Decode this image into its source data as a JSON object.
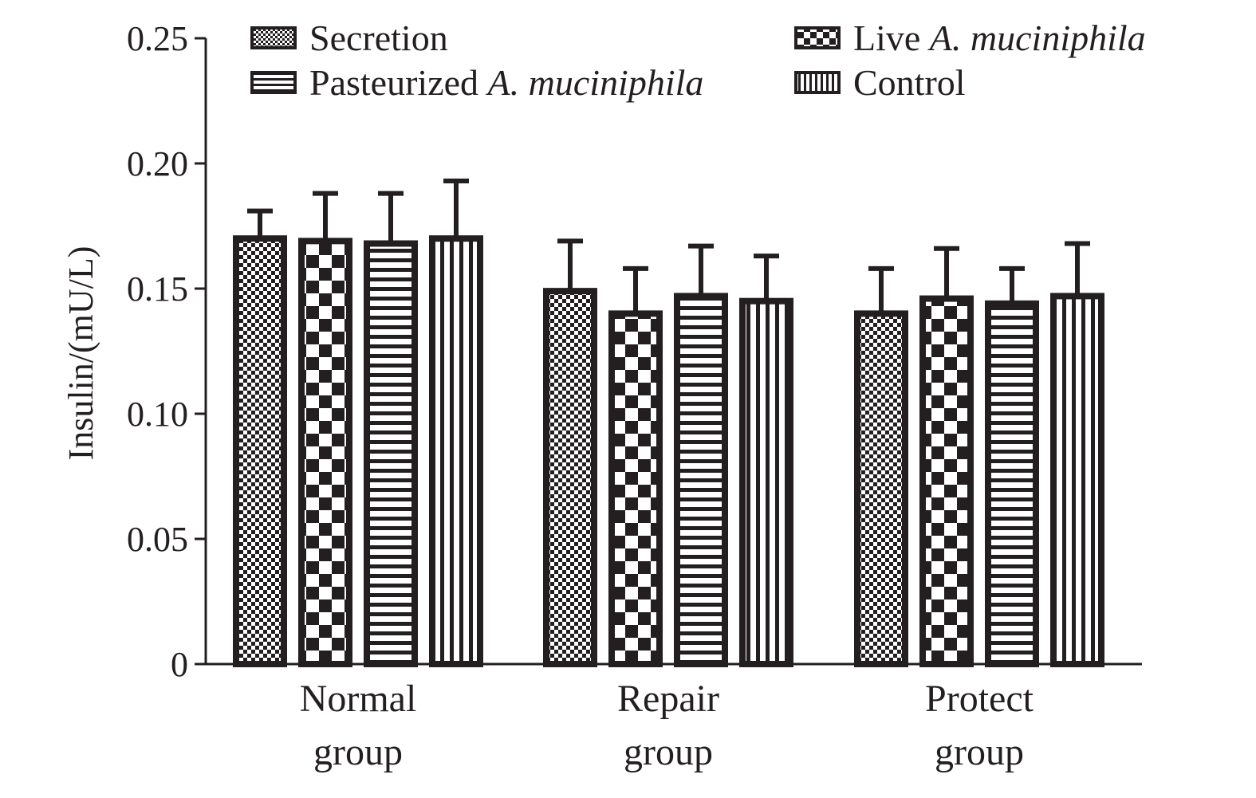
{
  "chart_data": {
    "type": "bar",
    "title": "",
    "xlabel": "",
    "ylabel": "Insulin/(mU/L)",
    "ylim": [
      0,
      0.25
    ],
    "yticks": [
      "0",
      "0.05",
      "0.10",
      "0.15",
      "0.20",
      "0.25"
    ],
    "categories": [
      [
        "Normal",
        "group"
      ],
      [
        "Repair",
        "group"
      ],
      [
        "Protect",
        "group"
      ]
    ],
    "legend_position": "top",
    "series": [
      {
        "name": "Secretion",
        "name_plain": "Secretion",
        "name_italic": "",
        "pattern": "fine-checker",
        "values": [
          0.17,
          0.149,
          0.14
        ],
        "errors": [
          0.011,
          0.02,
          0.018
        ]
      },
      {
        "name": "Live A. muciniphila",
        "name_plain": "Live ",
        "name_italic": "A. muciniphila",
        "pattern": "coarse-checker",
        "values": [
          0.169,
          0.14,
          0.146
        ],
        "errors": [
          0.019,
          0.018,
          0.02
        ]
      },
      {
        "name": "Pasteurized A. muciniphila",
        "name_plain": "Pasteurized ",
        "name_italic": "A. muciniphila",
        "pattern": "horizontal-stripes",
        "values": [
          0.168,
          0.147,
          0.144
        ],
        "errors": [
          0.02,
          0.02,
          0.014
        ]
      },
      {
        "name": "Control",
        "name_plain": "Control",
        "name_italic": "",
        "pattern": "vertical-stripes",
        "values": [
          0.17,
          0.145,
          0.147
        ],
        "errors": [
          0.023,
          0.018,
          0.021
        ]
      }
    ],
    "colors": {
      "ink": "#231f20",
      "background": "#ffffff"
    }
  }
}
